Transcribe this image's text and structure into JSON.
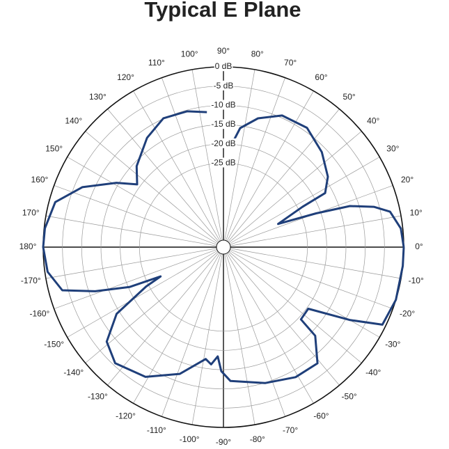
{
  "chart_data": {
    "type": "polar",
    "title": "Typical E Plane",
    "rlim": [
      -45,
      0
    ],
    "rticks": [
      {
        "value": 0,
        "label": "0 dB"
      },
      {
        "value": -5,
        "label": "-5 dB"
      },
      {
        "value": -10,
        "label": "-10 dB"
      },
      {
        "value": -15,
        "label": "-15 dB"
      },
      {
        "value": -20,
        "label": "-20 dB"
      },
      {
        "value": -25,
        "label": "-25 dB"
      }
    ],
    "thetaticks": [
      {
        "value": 0,
        "label": "0°"
      },
      {
        "value": 10,
        "label": "10°"
      },
      {
        "value": 20,
        "label": "20°"
      },
      {
        "value": 30,
        "label": "30°"
      },
      {
        "value": 40,
        "label": "40°"
      },
      {
        "value": 50,
        "label": "50°"
      },
      {
        "value": 60,
        "label": "60°"
      },
      {
        "value": 70,
        "label": "70°"
      },
      {
        "value": 80,
        "label": "80°"
      },
      {
        "value": 90,
        "label": "90°"
      },
      {
        "value": 100,
        "label": "100°"
      },
      {
        "value": 110,
        "label": "110°"
      },
      {
        "value": 120,
        "label": "120°"
      },
      {
        "value": 130,
        "label": "130°"
      },
      {
        "value": 140,
        "label": "140°"
      },
      {
        "value": 150,
        "label": "150°"
      },
      {
        "value": 160,
        "label": "160°"
      },
      {
        "value": 170,
        "label": "170°"
      },
      {
        "value": 180,
        "label": "180°"
      },
      {
        "value": -170,
        "label": "-170°"
      },
      {
        "value": -160,
        "label": "-160°"
      },
      {
        "value": -150,
        "label": "-150°"
      },
      {
        "value": -140,
        "label": "-140°"
      },
      {
        "value": -130,
        "label": "-130°"
      },
      {
        "value": -120,
        "label": "-120°"
      },
      {
        "value": -110,
        "label": "-110°"
      },
      {
        "value": -100,
        "label": "-100°"
      },
      {
        "value": -90,
        "label": "-90°"
      },
      {
        "value": -80,
        "label": "-80°"
      },
      {
        "value": -70,
        "label": "-70°"
      },
      {
        "value": -60,
        "label": "-60°"
      },
      {
        "value": -50,
        "label": "-50°"
      },
      {
        "value": -40,
        "label": "-40°"
      },
      {
        "value": -30,
        "label": "-30°"
      },
      {
        "value": -20,
        "label": "-20°"
      },
      {
        "value": -10,
        "label": "-10°"
      }
    ],
    "color": "#1f3f7a",
    "x": [
      0,
      6,
      12,
      15,
      18,
      20,
      23,
      27,
      28,
      34,
      44,
      55,
      66,
      75,
      82,
      85,
      null,
      97,
      105,
      115,
      125,
      137,
      144,
      149,
      157,
      165,
      174,
      180,
      -172,
      -165,
      -161,
      -157,
      -155,
      -153,
      -148,
      -141,
      -133,
      -121,
      -109,
      -99,
      -96,
      -93,
      -91,
      -87,
      -73,
      -61,
      -51,
      -44,
      -43,
      -36,
      -30,
      -26,
      -17,
      -6,
      0
    ],
    "values": [
      0,
      -0.5,
      -2.6,
      -6.4,
      -12.3,
      -21.2,
      -31.4,
      -23.8,
      -16.9,
      -14.1,
      -11.3,
      -9.0,
      -9.4,
      -12.2,
      -15.6,
      -19.6,
      null,
      -11.5,
      -10.3,
      -9.9,
      -12.2,
      -16.0,
      -19.1,
      -14.4,
      -7.0,
      -1.6,
      -0.2,
      0,
      -0.7,
      -3.5,
      -11.6,
      -20.3,
      -28.8,
      -24.3,
      -14.1,
      -7.8,
      -5.6,
      -7.5,
      -12.0,
      -17.4,
      -16.2,
      -18.4,
      -14.6,
      -12.0,
      -9.9,
      -8.2,
      -8.0,
      -13.7,
      -19.3,
      -19.6,
      -9.0,
      -0.9,
      0,
      0,
      0
    ]
  }
}
